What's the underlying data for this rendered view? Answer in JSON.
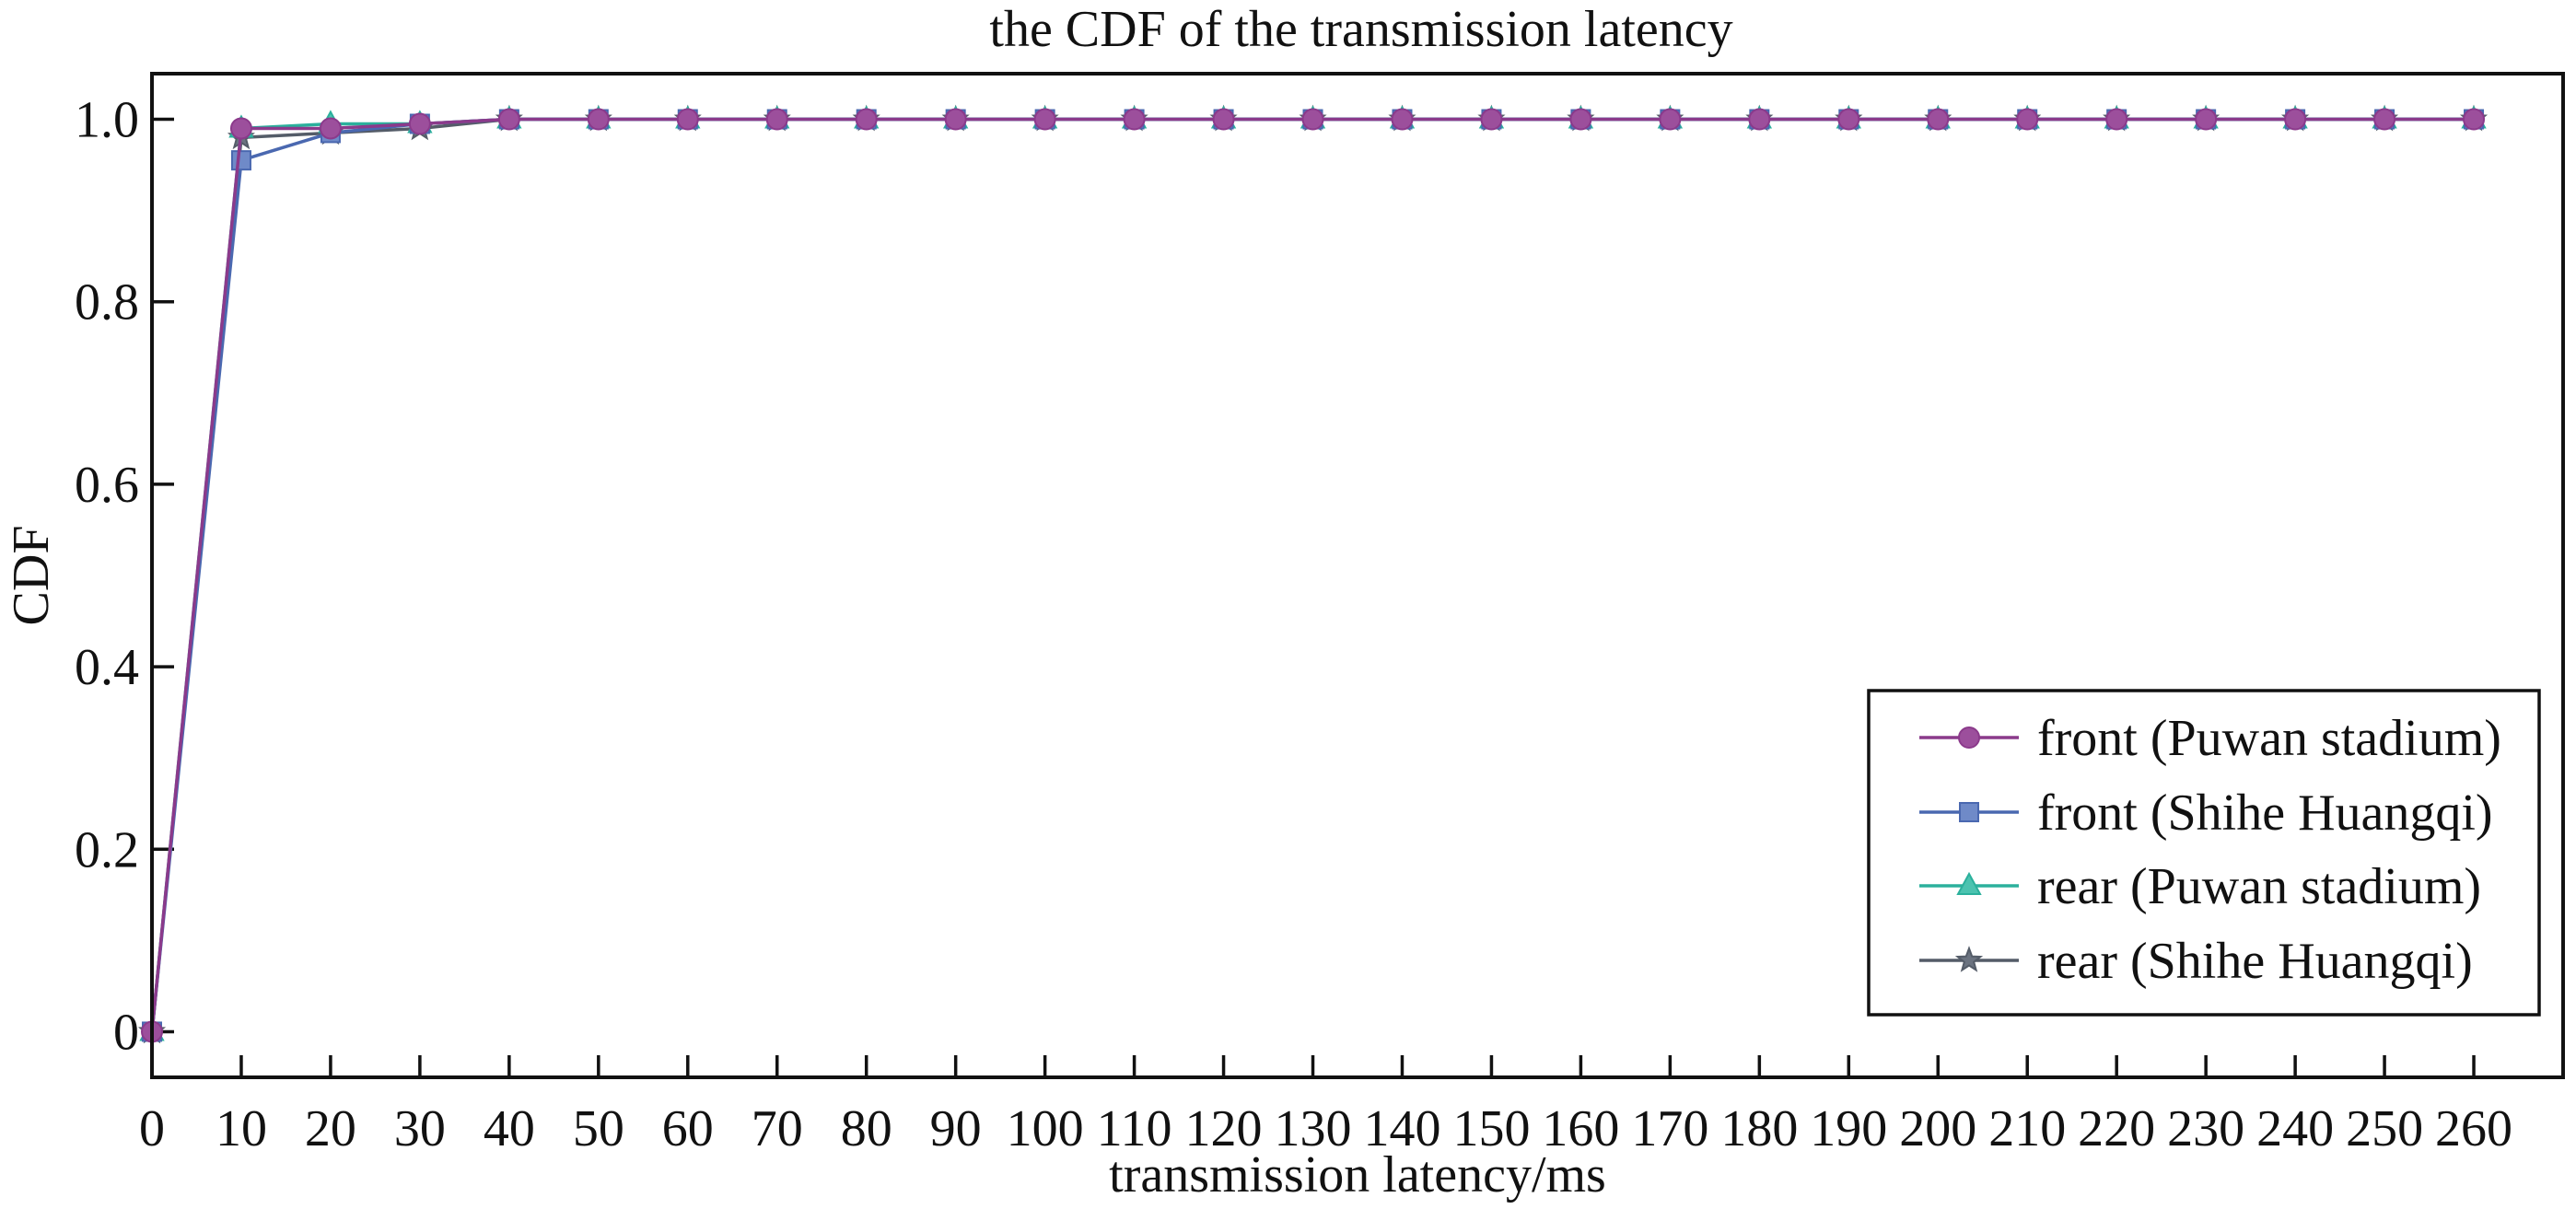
{
  "chart_data": {
    "type": "line",
    "title": "the CDF of the transmission latency",
    "xlabel": "transmission latency/ms",
    "ylabel": "CDF",
    "xlim": [
      0,
      270
    ],
    "ylim": [
      -0.05,
      1.05
    ],
    "xticks": [
      0,
      10,
      20,
      30,
      40,
      50,
      60,
      70,
      80,
      90,
      100,
      110,
      120,
      130,
      140,
      150,
      160,
      170,
      180,
      190,
      200,
      210,
      220,
      230,
      240,
      250,
      260
    ],
    "yticks": [
      0,
      0.2,
      0.4,
      0.6,
      0.8,
      1.0
    ],
    "ytick_labels": [
      "0",
      "0.2",
      "0.4",
      "0.6",
      "0.8",
      "1.0"
    ],
    "grid": false,
    "legend_position": "lower-right",
    "x": [
      0,
      10,
      20,
      30,
      40,
      50,
      60,
      70,
      80,
      90,
      100,
      110,
      120,
      130,
      140,
      150,
      160,
      170,
      180,
      190,
      200,
      210,
      220,
      230,
      240,
      250,
      260
    ],
    "series": [
      {
        "name": "front (Puwan stadium)",
        "color": "#8b3a8b",
        "marker_fill": "#9c4f9c",
        "marker": "circle",
        "values": [
          0,
          0.99,
          0.99,
          0.995,
          1,
          1,
          1,
          1,
          1,
          1,
          1,
          1,
          1,
          1,
          1,
          1,
          1,
          1,
          1,
          1,
          1,
          1,
          1,
          1,
          1,
          1,
          1
        ]
      },
      {
        "name": "front (Shihe Huangqi)",
        "color": "#4a68b0",
        "marker_fill": "#6f8ac8",
        "marker": "square",
        "values": [
          0,
          0.955,
          0.985,
          0.995,
          1,
          1,
          1,
          1,
          1,
          1,
          1,
          1,
          1,
          1,
          1,
          1,
          1,
          1,
          1,
          1,
          1,
          1,
          1,
          1,
          1,
          1,
          1
        ]
      },
      {
        "name": "rear (Puwan stadium)",
        "color": "#2bb09c",
        "marker_fill": "#4cc3b0",
        "marker": "triangle",
        "values": [
          0,
          0.99,
          0.995,
          0.995,
          1,
          1,
          1,
          1,
          1,
          1,
          1,
          1,
          1,
          1,
          1,
          1,
          1,
          1,
          1,
          1,
          1,
          1,
          1,
          1,
          1,
          1,
          1
        ]
      },
      {
        "name": "rear (Shihe Huangqi)",
        "color": "#545c68",
        "marker_fill": "#6b7380",
        "marker": "star",
        "values": [
          0,
          0.98,
          0.985,
          0.99,
          1,
          1,
          1,
          1,
          1,
          1,
          1,
          1,
          1,
          1,
          1,
          1,
          1,
          1,
          1,
          1,
          1,
          1,
          1,
          1,
          1,
          1,
          1
        ]
      }
    ]
  }
}
